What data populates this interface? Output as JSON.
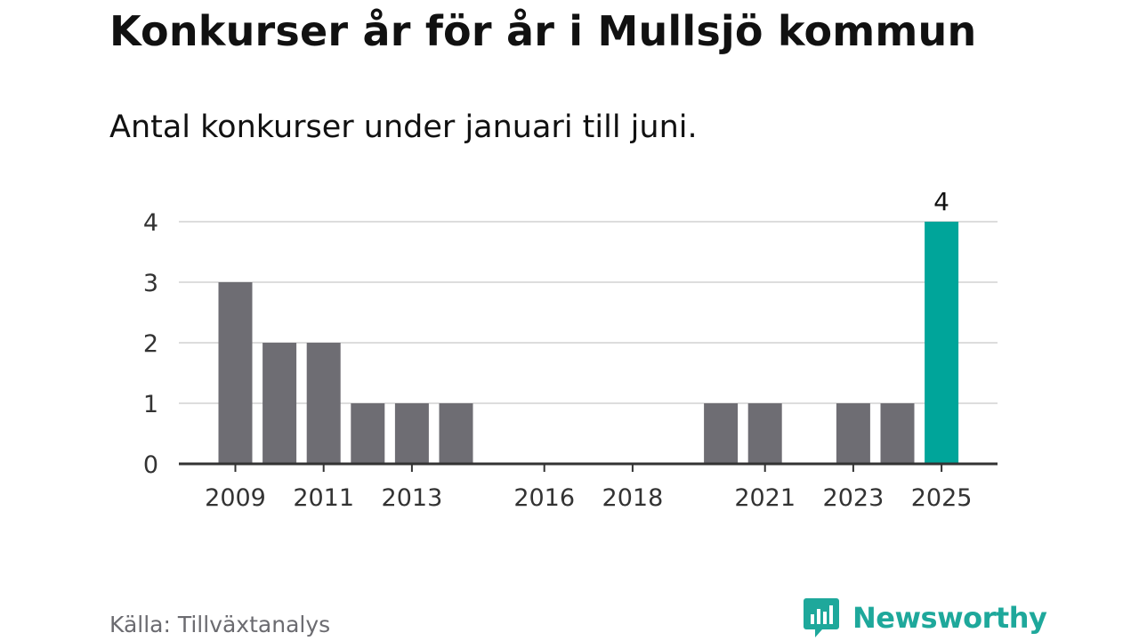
{
  "title": "Konkurser år för år i Mullsjö kommun",
  "subtitle": "Antal konkurser under januari till juni.",
  "source": "Källa: Tillväxtanalys",
  "brand": {
    "name": "Newsworthy",
    "icon": "newsworthy-logo-icon",
    "color": "#1ea89b"
  },
  "chart_data": {
    "type": "bar",
    "categories": [
      "2009",
      "2010",
      "2011",
      "2012",
      "2013",
      "2014",
      "2015",
      "2016",
      "2017",
      "2018",
      "2019",
      "2020",
      "2021",
      "2022",
      "2023",
      "2024",
      "2025"
    ],
    "values": [
      3,
      2,
      2,
      1,
      1,
      1,
      0,
      0,
      0,
      0,
      0,
      1,
      1,
      0,
      1,
      1,
      4
    ],
    "x_tick_labels": [
      "2009",
      "2011",
      "2013",
      "2016",
      "2018",
      "2021",
      "2023",
      "2025"
    ],
    "y_ticks": [
      0,
      1,
      2,
      3,
      4
    ],
    "ylim": [
      0,
      4
    ],
    "grid": true,
    "highlight_category": "2025",
    "data_labels": [
      {
        "category": "2025",
        "text": "4"
      }
    ],
    "colors": {
      "bar": "#6e6d73",
      "highlight": "#00a59a",
      "grid": "#dddddd",
      "axis": "#333333"
    }
  }
}
